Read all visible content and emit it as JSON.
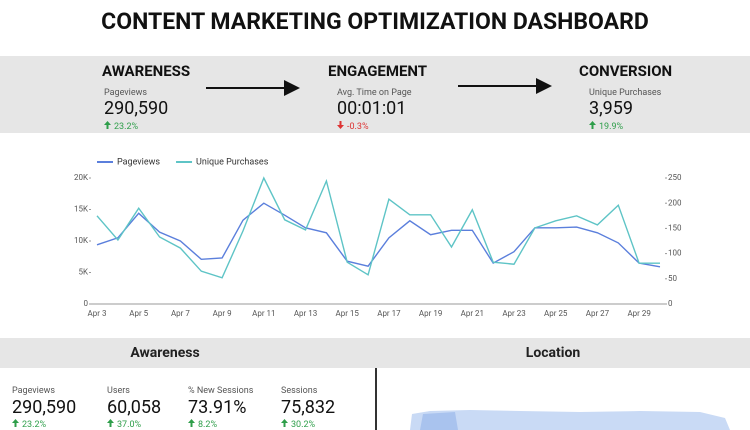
{
  "title": "CONTENT MARKETING OPTIMIZATION DASHBOARD",
  "funnel": [
    {
      "stage": "AWARENESS",
      "metric": "Pageviews",
      "value": "290,590",
      "change": "23.2%",
      "direction": "up"
    },
    {
      "stage": "ENGAGEMENT",
      "metric": "Avg. Time on Page",
      "value": "00:01:01",
      "change": "-0.3%",
      "direction": "down"
    },
    {
      "stage": "CONVERSION",
      "metric": "Unique Purchases",
      "value": "3,959",
      "change": "19.9%",
      "direction": "up"
    }
  ],
  "chart_data": {
    "type": "line",
    "categories": [
      "Apr 3",
      null,
      "Apr 5",
      null,
      "Apr 7",
      null,
      "Apr 9",
      null,
      "Apr 11",
      null,
      "Apr 13",
      null,
      "Apr 15",
      null,
      "Apr 17",
      null,
      "Apr 19",
      null,
      "Apr 21",
      null,
      "Apr 23",
      null,
      "Apr 25",
      null,
      "Apr 27",
      null,
      "Apr 29",
      null
    ],
    "series": [
      {
        "name": "Pageviews",
        "color": "#5b7fdc",
        "values": [
          9400,
          10500,
          14400,
          11400,
          10000,
          7100,
          7300,
          13300,
          16000,
          14100,
          12100,
          11300,
          6800,
          6000,
          10500,
          13200,
          11000,
          11700,
          11700,
          6500,
          8300,
          12100,
          12100,
          12200,
          11300,
          9700,
          6500,
          5900
        ]
      },
      {
        "name": "Unique Purchases",
        "color": "#5ec4c6",
        "axis": "y2",
        "values": [
          175,
          127,
          190,
          133,
          111,
          65,
          52,
          145,
          250,
          167,
          147,
          244,
          83,
          58,
          208,
          177,
          177,
          113,
          187,
          83,
          79,
          151,
          165,
          175,
          157,
          196,
          81,
          81
        ]
      }
    ],
    "ylim": [
      0,
      20000
    ],
    "yticks": [
      0,
      {
        "value": 5000,
        "label": "5K"
      },
      {
        "value": 10000,
        "label": "10K"
      },
      {
        "value": 15000,
        "label": "15K"
      },
      {
        "value": 20000,
        "label": "20K"
      }
    ],
    "y2lim": [
      0,
      250
    ],
    "y2ticks": [
      0,
      50,
      100,
      150,
      200,
      250
    ],
    "legend": "top-left"
  },
  "awareness": {
    "title": "Awareness",
    "metrics": [
      {
        "metric": "Pageviews",
        "value": "290,590",
        "change": "23.2%",
        "direction": "up"
      },
      {
        "metric": "Users",
        "value": "60,058",
        "change": "37.0%",
        "direction": "up"
      },
      {
        "metric": "% New Sessions",
        "value": "73.91%",
        "change": "8.2%",
        "direction": "up"
      },
      {
        "metric": "Sessions",
        "value": "75,832",
        "change": "30.2%",
        "direction": "up"
      }
    ]
  },
  "location": {
    "title": "Location"
  }
}
